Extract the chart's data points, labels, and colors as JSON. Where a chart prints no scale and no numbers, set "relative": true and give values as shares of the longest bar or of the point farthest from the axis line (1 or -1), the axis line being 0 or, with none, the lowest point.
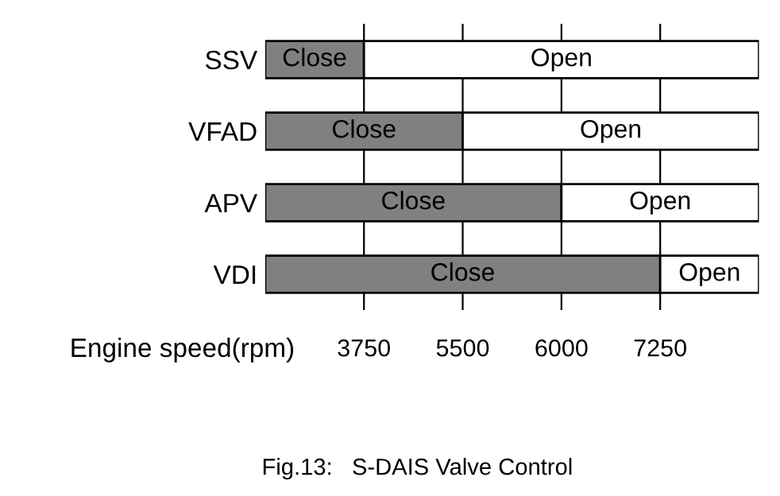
{
  "chart_data": {
    "type": "bar",
    "orientation": "horizontal",
    "stacked": true,
    "relative": true,
    "categories": [
      "SSV",
      "VFAD",
      "APV",
      "VDI"
    ],
    "series": [
      {
        "name": "Close",
        "color": "#808080",
        "values": [
          0.2,
          0.4,
          0.6,
          0.8
        ]
      },
      {
        "name": "Open",
        "color": "#ffffff",
        "values": [
          0.8,
          0.6,
          0.4,
          0.2
        ]
      }
    ],
    "ref_lines": [
      {
        "axis": "x",
        "value": 0.2,
        "color": "#000000"
      },
      {
        "axis": "x",
        "value": 0.4,
        "color": "#000000"
      },
      {
        "axis": "x",
        "value": 0.6,
        "color": "#000000"
      },
      {
        "axis": "x",
        "value": 0.8,
        "color": "#000000"
      }
    ],
    "xlabel": "Engine speed(rpm)",
    "annotations": [
      "3750",
      "5500",
      "6000",
      "7250",
      "Fig.13:   S-DAIS Valve Control"
    ]
  }
}
